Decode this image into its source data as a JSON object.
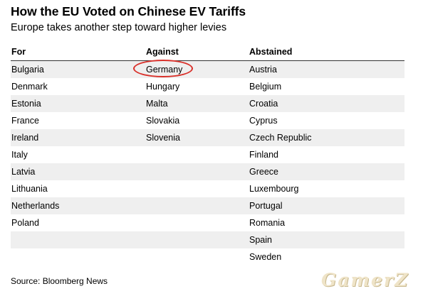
{
  "title": "How the EU Voted on Chinese EV Tariffs",
  "subtitle": "Europe takes another step toward higher levies",
  "table": {
    "headers": [
      "For",
      "Against",
      "Abstained"
    ],
    "rows": [
      [
        "Bulgaria",
        "Germany",
        "Austria"
      ],
      [
        "Denmark",
        "Hungary",
        "Belgium"
      ],
      [
        "Estonia",
        "Malta",
        "Croatia"
      ],
      [
        "France",
        "Slovakia",
        "Cyprus"
      ],
      [
        "Ireland",
        "Slovenia",
        "Czech Republic"
      ],
      [
        "Italy",
        "",
        "Finland"
      ],
      [
        "Latvia",
        "",
        "Greece"
      ],
      [
        "Lithuania",
        "",
        "Luxembourg"
      ],
      [
        "Netherlands",
        "",
        "Portugal"
      ],
      [
        "Poland",
        "",
        "Romania"
      ],
      [
        "",
        "",
        "Spain"
      ],
      [
        "",
        "",
        "Sweden"
      ]
    ]
  },
  "highlight": {
    "value": "Germany",
    "color": "#d9302a"
  },
  "source": "Source: Bloomberg News",
  "watermark": "GamerZ",
  "colors": {
    "row_shade": "#efefef",
    "header_rule": "#333333",
    "text": "#000000"
  }
}
